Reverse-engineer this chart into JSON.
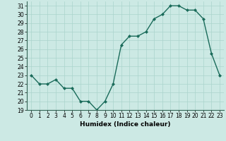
{
  "x": [
    0,
    1,
    2,
    3,
    4,
    5,
    6,
    7,
    8,
    9,
    10,
    11,
    12,
    13,
    14,
    15,
    16,
    17,
    18,
    19,
    20,
    21,
    22,
    23
  ],
  "y": [
    23,
    22,
    22,
    22.5,
    21.5,
    21.5,
    20,
    20,
    19,
    20,
    22,
    26.5,
    27.5,
    27.5,
    28,
    29.5,
    30,
    31,
    31,
    30.5,
    30.5,
    29.5,
    25.5,
    23
  ],
  "line_color": "#1a6b5a",
  "marker": "D",
  "marker_size": 2.0,
  "bg_color": "#cce9e4",
  "grid_color": "#aad4cc",
  "xlabel": "Humidex (Indice chaleur)",
  "ylim": [
    19,
    31.5
  ],
  "xlim": [
    -0.5,
    23.5
  ],
  "yticks": [
    19,
    20,
    21,
    22,
    23,
    24,
    25,
    26,
    27,
    28,
    29,
    30,
    31
  ],
  "xticks": [
    0,
    1,
    2,
    3,
    4,
    5,
    6,
    7,
    8,
    9,
    10,
    11,
    12,
    13,
    14,
    15,
    16,
    17,
    18,
    19,
    20,
    21,
    22,
    23
  ],
  "tick_fontsize": 5.5,
  "xlabel_fontsize": 6.5,
  "line_width": 1.0
}
